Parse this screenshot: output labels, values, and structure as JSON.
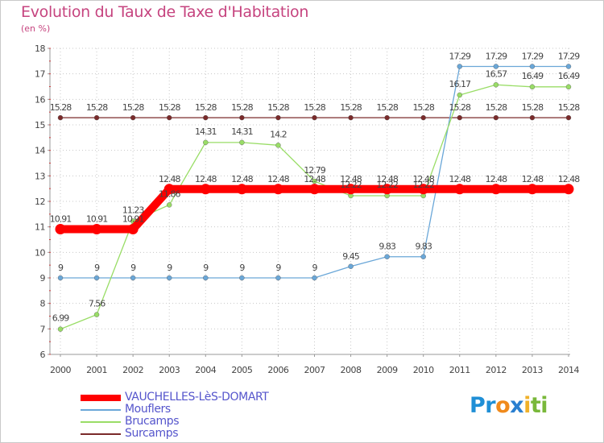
{
  "title": "Evolution du Taux de Taxe d'Habitation",
  "subtitle": "(en %)",
  "logo": {
    "parts": [
      "Pr",
      "o",
      "x",
      "i",
      "ti"
    ],
    "colors": [
      "#1f8fd6",
      "#f08a1c",
      "#2a7fd0",
      "#f0b12a",
      "#79b83a"
    ]
  },
  "chart_data": {
    "type": "line",
    "title": "Evolution du Taux de Taxe d'Habitation",
    "ylabel": "(en %)",
    "ylim": [
      6,
      18
    ],
    "yticks": [
      "6",
      "7",
      "8",
      "9",
      "10",
      "11",
      "12",
      "13",
      "14",
      "15",
      "16",
      "17",
      "18"
    ],
    "grid": true,
    "legend_position": "bottom-left",
    "x": [
      "2000",
      "2001",
      "2002",
      "2003",
      "2004",
      "2005",
      "2006",
      "2007",
      "2008",
      "2009",
      "2010",
      "2011",
      "2012",
      "2013",
      "2014"
    ],
    "series": [
      {
        "name": "VAUCHELLES-LèS-DOMART",
        "color": "#ff0000",
        "values": [
          10.91,
          10.91,
          10.91,
          12.48,
          12.48,
          12.48,
          12.48,
          12.48,
          12.48,
          12.48,
          12.48,
          12.48,
          12.48,
          12.48,
          12.48
        ],
        "labels": [
          "10.91",
          "10.91",
          "10.91",
          "12.48",
          "12.48",
          "12.48",
          "12.48",
          "12.48",
          "12.48",
          "12.48",
          "12.48",
          "12.48",
          "12.48",
          "12.48",
          "12.48"
        ]
      },
      {
        "name": "Mouflers",
        "color": "#6aa7d8",
        "values": [
          9,
          9,
          9,
          9,
          9,
          9,
          9,
          9,
          9.45,
          9.83,
          9.83,
          17.29,
          17.29,
          17.29,
          17.29
        ],
        "labels": [
          "9",
          "9",
          "9",
          "9",
          "9",
          "9",
          "9",
          "9",
          "9.45",
          "9.83",
          "9.83",
          "17.29",
          "17.29",
          "17.29",
          "17.29"
        ]
      },
      {
        "name": "Brucamps",
        "color": "#99dd66",
        "values": [
          6.99,
          7.56,
          11.23,
          11.86,
          14.31,
          14.31,
          14.2,
          12.79,
          12.22,
          12.22,
          12.22,
          16.17,
          16.57,
          16.49,
          16.49
        ],
        "labels": [
          "6.99",
          "7.56",
          "11.23",
          "11.86",
          "14.31",
          "14.31",
          "14.2",
          "12.79",
          "12.22",
          "12.22",
          "12.22",
          "16.17",
          "16.57",
          "16.49",
          "16.49"
        ]
      },
      {
        "name": "Surcamps",
        "color": "#7a2a2a",
        "values": [
          15.28,
          15.28,
          15.28,
          15.28,
          15.28,
          15.28,
          15.28,
          15.28,
          15.28,
          15.28,
          15.28,
          15.28,
          15.28,
          15.28,
          15.28
        ],
        "labels": [
          "15.28",
          "15.28",
          "15.28",
          "15.28",
          "15.28",
          "15.28",
          "15.28",
          "15.28",
          "15.28",
          "15.28",
          "15.28",
          "15.28",
          "15.28",
          "15.28",
          "15.28"
        ]
      }
    ]
  }
}
